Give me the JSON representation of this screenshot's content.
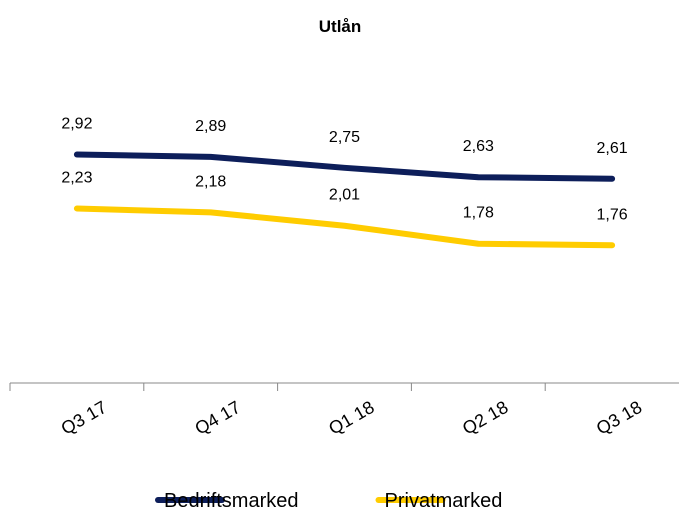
{
  "chart_data": {
    "type": "line",
    "title": "Utlån",
    "categories": [
      "Q3 17",
      "Q4 17",
      "Q1 18",
      "Q2 18",
      "Q3 18"
    ],
    "series": [
      {
        "name": "Bedriftsmarked",
        "color": "#0d1e5a",
        "values": [
          2.92,
          2.89,
          2.75,
          2.63,
          2.61
        ],
        "value_labels": [
          "2,92",
          "2,89",
          "2,75",
          "2,63",
          "2,61"
        ]
      },
      {
        "name": "Privatmarked",
        "color": "#ffcc00",
        "values": [
          2.23,
          2.18,
          2.01,
          1.78,
          1.76
        ],
        "value_labels": [
          "2,23",
          "2,18",
          "2,01",
          "1,78",
          "1,76"
        ]
      }
    ],
    "ylim": [
      0,
      4
    ],
    "legend": "bottom"
  }
}
